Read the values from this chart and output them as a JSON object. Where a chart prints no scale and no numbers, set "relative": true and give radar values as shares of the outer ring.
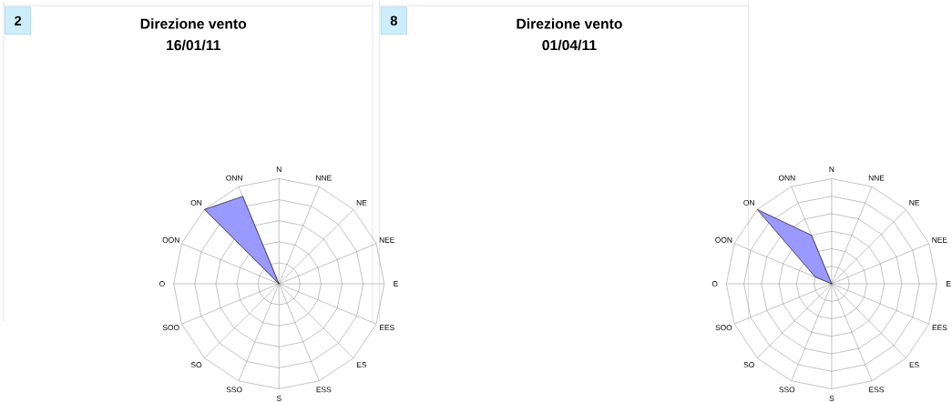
{
  "chart_data": [
    {
      "type": "radar",
      "title": "Direzione vento",
      "subtitle": "16/01/11",
      "annotations": [
        "2"
      ],
      "relative": true,
      "grid": true,
      "categories": [
        "N",
        "NNE",
        "NE",
        "NEE",
        "E",
        "EES",
        "ES",
        "ESS",
        "S",
        "SSO",
        "SO",
        "SOO",
        "O",
        "OON",
        "ON",
        "ONN"
      ],
      "series": [
        {
          "color": "#9999ff",
          "values": [
            0,
            0,
            0,
            0,
            0,
            0,
            0,
            0,
            0,
            0,
            0,
            0,
            0,
            0,
            1,
            0.9
          ]
        }
      ]
    },
    {
      "type": "radar",
      "title": "Direzione vento",
      "subtitle": "01/04/11",
      "annotations": [
        "8"
      ],
      "relative": true,
      "grid": true,
      "categories": [
        "N",
        "NNE",
        "NE",
        "NEE",
        "E",
        "EES",
        "ES",
        "ESS",
        "S",
        "SSO",
        "SO",
        "SOO",
        "O",
        "OON",
        "ON",
        "ONN"
      ],
      "series": [
        {
          "color": "#9999ff",
          "values": [
            0,
            0,
            0,
            0,
            0,
            0,
            0,
            0,
            0,
            0,
            0,
            0,
            0,
            0.17,
            1,
            0.5
          ]
        }
      ]
    }
  ]
}
